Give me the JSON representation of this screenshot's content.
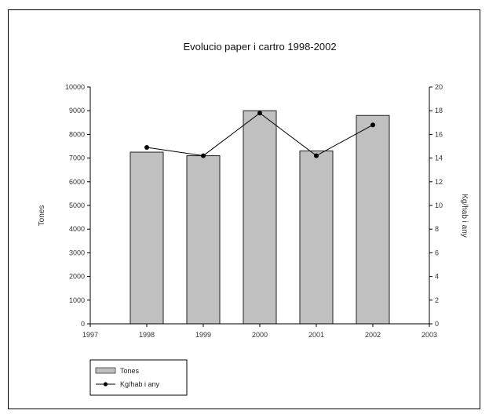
{
  "chart_data": {
    "type": "bar",
    "title": "Evolucio paper i cartro 1998-2002",
    "categories": [
      "1998",
      "1999",
      "2000",
      "2001",
      "2002"
    ],
    "x_ticks": [
      "1997",
      "1998",
      "1999",
      "2000",
      "2001",
      "2002",
      "2003"
    ],
    "xlim": [
      1997,
      2003
    ],
    "ylabel": "Tones",
    "y2label": "Kg/hab i any",
    "ylim": [
      0,
      10000
    ],
    "y2lim": [
      0,
      20
    ],
    "y_ticks": [
      "0",
      "1000",
      "2000",
      "3000",
      "4000",
      "5000",
      "6000",
      "7000",
      "8000",
      "9000",
      "10000"
    ],
    "y2_ticks": [
      "0",
      "2",
      "4",
      "6",
      "8",
      "10",
      "12",
      "14",
      "16",
      "18",
      "20"
    ],
    "series": [
      {
        "name": "Tones",
        "kind": "bar",
        "axis": "left",
        "color": "#c0c0c0",
        "x": [
          1998,
          1999,
          2000,
          2001,
          2002
        ],
        "values": [
          7250,
          7100,
          9000,
          7300,
          8800
        ]
      },
      {
        "name": "Kg/hab i any",
        "kind": "line",
        "axis": "right",
        "color": "#000000",
        "x": [
          1998,
          1999,
          2000,
          2001,
          2002
        ],
        "values": [
          14.9,
          14.2,
          17.8,
          14.2,
          16.8
        ]
      }
    ],
    "legend": {
      "placement": "bottom-left",
      "entries": [
        "Tones",
        "Kg/hab i any"
      ]
    },
    "grid": false
  }
}
